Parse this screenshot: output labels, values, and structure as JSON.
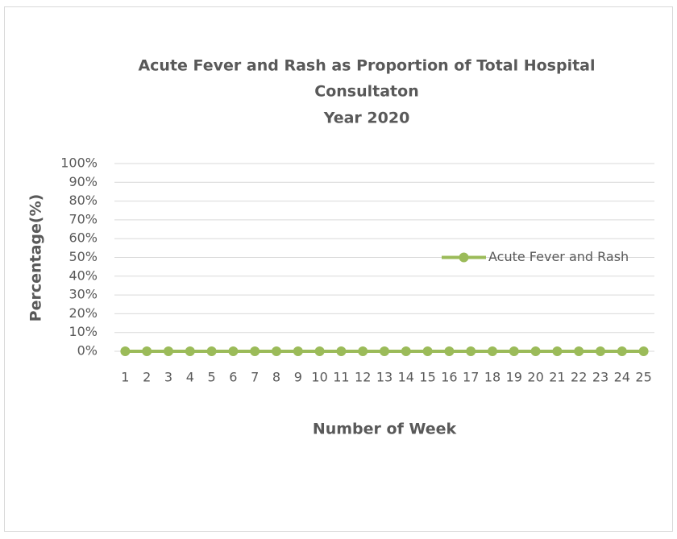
{
  "chart_data": {
    "type": "line",
    "title": [
      "Acute Fever and Rash as Proportion of Total Hospital",
      "Consultaton"
    ],
    "subtitle": "Year 2020",
    "x_label": "Number of Week",
    "y_label": "Percentage(%)",
    "categories": [
      "1",
      "2",
      "3",
      "4",
      "5",
      "6",
      "7",
      "8",
      "9",
      "10",
      "11",
      "12",
      "13",
      "14",
      "15",
      "16",
      "17",
      "18",
      "19",
      "20",
      "21",
      "22",
      "23",
      "24",
      "25"
    ],
    "series": [
      {
        "name": "Acute Fever and Rash",
        "color": "#9bbb59",
        "values": [
          0,
          0,
          0,
          0,
          0,
          0,
          0,
          0,
          0,
          0,
          0,
          0,
          0,
          0,
          0,
          0,
          0,
          0,
          0,
          0,
          0,
          0,
          0,
          0,
          0
        ]
      }
    ],
    "ylim": [
      0,
      100
    ],
    "yticks": [
      {
        "value": 0,
        "label": "0%"
      },
      {
        "value": 10,
        "label": "10%"
      },
      {
        "value": 20,
        "label": "20%"
      },
      {
        "value": 30,
        "label": "30%"
      },
      {
        "value": 40,
        "label": "40%"
      },
      {
        "value": 50,
        "label": "50%"
      },
      {
        "value": 60,
        "label": "60%"
      },
      {
        "value": 70,
        "label": "70%"
      },
      {
        "value": 80,
        "label": "80%"
      },
      {
        "value": 90,
        "label": "90%"
      },
      {
        "value": 100,
        "label": "100%"
      }
    ],
    "grid": true,
    "legend": "right"
  }
}
